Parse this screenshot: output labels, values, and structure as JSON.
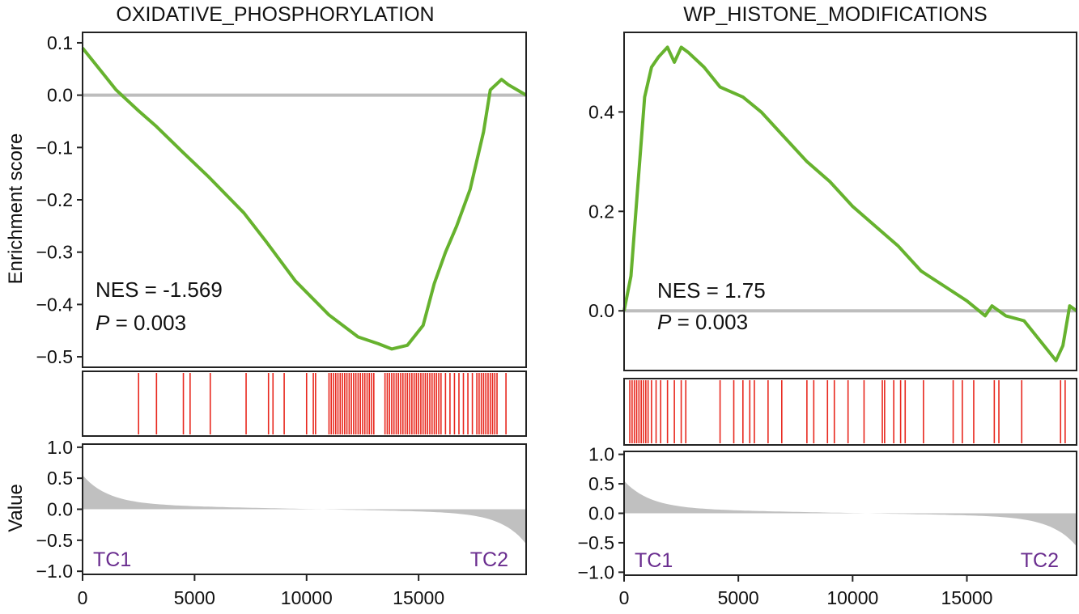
{
  "figure": {
    "y_label_enrichment": "Enrichment score",
    "y_label_metric": "Value",
    "colors": {
      "es_line": "#66b22e",
      "zero_line": "#bdbdbd",
      "hits": "#e8281e",
      "metric_fill": "#c0c0c0",
      "frame": "#222222",
      "group_labels": "#6a2d8f",
      "text": "#111111"
    }
  },
  "chart_data": [
    {
      "type": "line",
      "title": "OXIDATIVE_PHOSPHORYLATION",
      "xlabel": "",
      "ylabel": "Enrichment score",
      "xlim": [
        0,
        19800
      ],
      "ylim": [
        -0.52,
        0.12
      ],
      "x_ticks": [
        0,
        5000,
        10000,
        15000
      ],
      "x_tick_labels": [
        "0",
        "5000",
        "10000",
        "15000"
      ],
      "y_ticks": [
        0.1,
        0.0,
        -0.1,
        -0.2,
        -0.3,
        -0.4,
        -0.5
      ],
      "y_tick_labels": [
        "0.1",
        "0.0",
        "−0.1",
        "−0.2",
        "−0.3",
        "−0.4",
        "−0.5"
      ],
      "series": [
        {
          "x": [
            0,
            1500,
            2500,
            3300,
            4500,
            5600,
            7200,
            8200,
            9500,
            11000,
            12300,
            13200,
            13800,
            14500,
            15200,
            15700,
            16200,
            16700,
            17300,
            17900,
            18200,
            18700,
            19000,
            19800
          ],
          "y": [
            0.09,
            0.01,
            -0.03,
            -0.06,
            -0.11,
            -0.155,
            -0.225,
            -0.28,
            -0.355,
            -0.42,
            -0.462,
            -0.475,
            -0.485,
            -0.478,
            -0.44,
            -0.36,
            -0.3,
            -0.25,
            -0.18,
            -0.07,
            0.01,
            0.03,
            0.02,
            0.0
          ]
        }
      ],
      "annotations": {
        "nes": "NES = -1.569",
        "p_label": "P",
        "p_value": " = 0.003"
      },
      "hits": [
        2500,
        3300,
        4500,
        4800,
        5700,
        7300,
        8300,
        8500,
        9000,
        10000,
        10300,
        10400,
        11000,
        11100,
        11200,
        11300,
        11400,
        11500,
        11600,
        11700,
        11800,
        11900,
        12000,
        12100,
        12200,
        12300,
        12400,
        12500,
        12600,
        12700,
        12800,
        12900,
        13000,
        13500,
        13600,
        13700,
        13800,
        13900,
        14000,
        14100,
        14200,
        14300,
        14400,
        14500,
        14600,
        14700,
        14800,
        14900,
        15000,
        15100,
        15200,
        15300,
        15400,
        15500,
        15600,
        15700,
        15800,
        15900,
        16000,
        16200,
        16400,
        16600,
        16800,
        17000,
        17200,
        17400,
        17600,
        17700,
        17800,
        17900,
        18000,
        18100,
        18200,
        18300,
        18400,
        18500,
        18900
      ],
      "metric": {
        "ylim": [
          -1.05,
          1.05
        ],
        "y_ticks": [
          1.0,
          0.5,
          0.0,
          -0.5,
          -1.0
        ],
        "y_tick_labels": [
          "1.0",
          "0.5",
          "0.0",
          "−0.5",
          "−1.0"
        ],
        "start": 0.45,
        "end": -0.5,
        "left_label": "TC1",
        "right_label": "TC2"
      }
    },
    {
      "type": "line",
      "title": "WP_HISTONE_MODIFICATIONS",
      "xlabel": "",
      "ylabel": "",
      "xlim": [
        0,
        19800
      ],
      "ylim": [
        -0.12,
        0.56
      ],
      "x_ticks": [
        0,
        5000,
        10000,
        15000
      ],
      "x_tick_labels": [
        "0",
        "5000",
        "10000",
        "15000"
      ],
      "y_ticks": [
        0.4,
        0.2,
        0.0
      ],
      "y_tick_labels": [
        "0.4",
        "0.2",
        "0.0"
      ],
      "series": [
        {
          "x": [
            0,
            300,
            600,
            900,
            1200,
            1500,
            1900,
            2200,
            2500,
            2800,
            3500,
            4200,
            5200,
            6000,
            7000,
            8000,
            9000,
            10000,
            11000,
            12000,
            13000,
            14000,
            15000,
            15800,
            16100,
            16700,
            17500,
            18900,
            19200,
            19500,
            19800
          ],
          "y": [
            0.0,
            0.07,
            0.25,
            0.43,
            0.49,
            0.51,
            0.53,
            0.5,
            0.53,
            0.52,
            0.49,
            0.45,
            0.43,
            0.4,
            0.35,
            0.3,
            0.26,
            0.21,
            0.17,
            0.13,
            0.08,
            0.05,
            0.02,
            -0.01,
            0.01,
            -0.01,
            -0.02,
            -0.1,
            -0.07,
            0.01,
            0.0
          ]
        }
      ],
      "annotations": {
        "nes": "NES = 1.75",
        "p_label": "P",
        "p_value": " = 0.003"
      },
      "hits": [
        250,
        350,
        450,
        550,
        650,
        750,
        850,
        950,
        1050,
        1200,
        1400,
        1600,
        1900,
        2200,
        2500,
        2700,
        4200,
        4800,
        5200,
        5500,
        5700,
        6300,
        6900,
        8000,
        8300,
        8900,
        9200,
        9800,
        10500,
        11300,
        11400,
        11800,
        12100,
        12300,
        13100,
        14400,
        14800,
        15300,
        16200,
        16400,
        17400,
        19100,
        19300
      ],
      "metric": {
        "ylim": [
          -1.05,
          1.05
        ],
        "y_ticks": [
          1.0,
          0.5,
          0.0,
          -0.5,
          -1.0
        ],
        "y_tick_labels": [
          "1.0",
          "0.5",
          "0.0",
          "−0.5",
          "−1.0"
        ],
        "start": 0.45,
        "end": -0.5,
        "left_label": "TC1",
        "right_label": "TC2"
      }
    }
  ]
}
